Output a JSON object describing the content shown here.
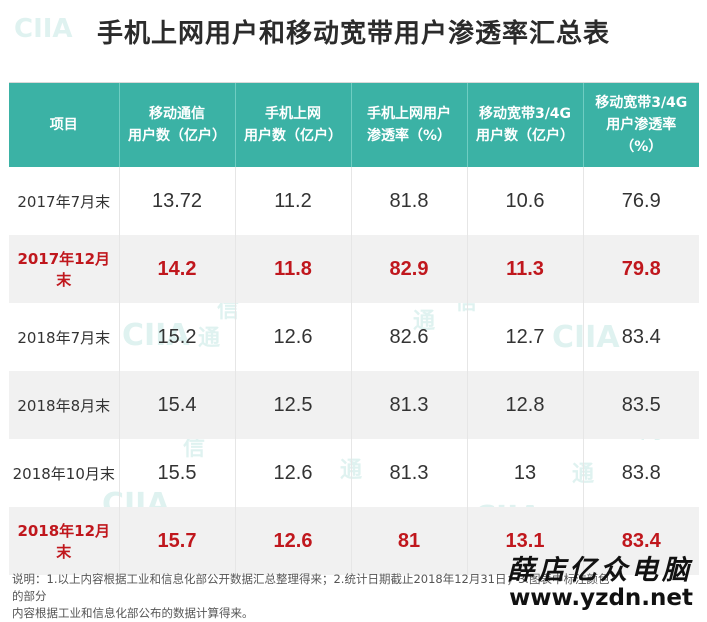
{
  "title": "手机上网用户和移动宽带用户渗透率汇总表",
  "watermark": {
    "logo": "CIIA",
    "chars": [
      "通",
      "信",
      "网"
    ]
  },
  "table": {
    "header": [
      [
        "项目"
      ],
      [
        "移动通信",
        "用户数（亿户）"
      ],
      [
        "手机上网",
        "用户数（亿户）"
      ],
      [
        "手机上网用户",
        "渗透率（%）"
      ],
      [
        "移动宽带3/4G",
        "用户数（亿户）"
      ],
      [
        "移动宽带3/4G",
        "用户渗透率",
        "（%）"
      ]
    ],
    "rows": [
      {
        "cells": [
          "2017年7月末",
          "13.72",
          "11.2",
          "81.8",
          "10.6",
          "76.9"
        ],
        "highlight": false
      },
      {
        "cells": [
          "2017年12月末",
          "14.2",
          "11.8",
          "82.9",
          "11.3",
          "79.8"
        ],
        "highlight": true
      },
      {
        "cells": [
          "2018年7月末",
          "15.2",
          "12.6",
          "82.6",
          "12.7",
          "83.4"
        ],
        "highlight": false
      },
      {
        "cells": [
          "2018年8月末",
          "15.4",
          "12.5",
          "81.3",
          "12.8",
          "83.5"
        ],
        "highlight": false
      },
      {
        "cells": [
          "2018年10月末",
          "15.5",
          "12.6",
          "81.3",
          "13",
          "83.8"
        ],
        "highlight": false
      },
      {
        "cells": [
          "2018年12月末",
          "15.7",
          "12.6",
          "81",
          "13.1",
          "83.4"
        ],
        "highlight": true
      }
    ]
  },
  "note": {
    "line1": "说明：1.以上内容根据工业和信息化部公开数据汇总整理得来；2.统计日期截止2018年12月31日；3.图表中标注颜色的部分",
    "line2": "内容根据工业和信息化部公布的数据计算得来。"
  },
  "brand": {
    "name": "薛店亿众电脑",
    "url": "www.yzdn.net"
  },
  "colors": {
    "header_bg": "#3bb2a5",
    "highlight_text": "#c0171d",
    "stripe": "#f1f1f1"
  }
}
